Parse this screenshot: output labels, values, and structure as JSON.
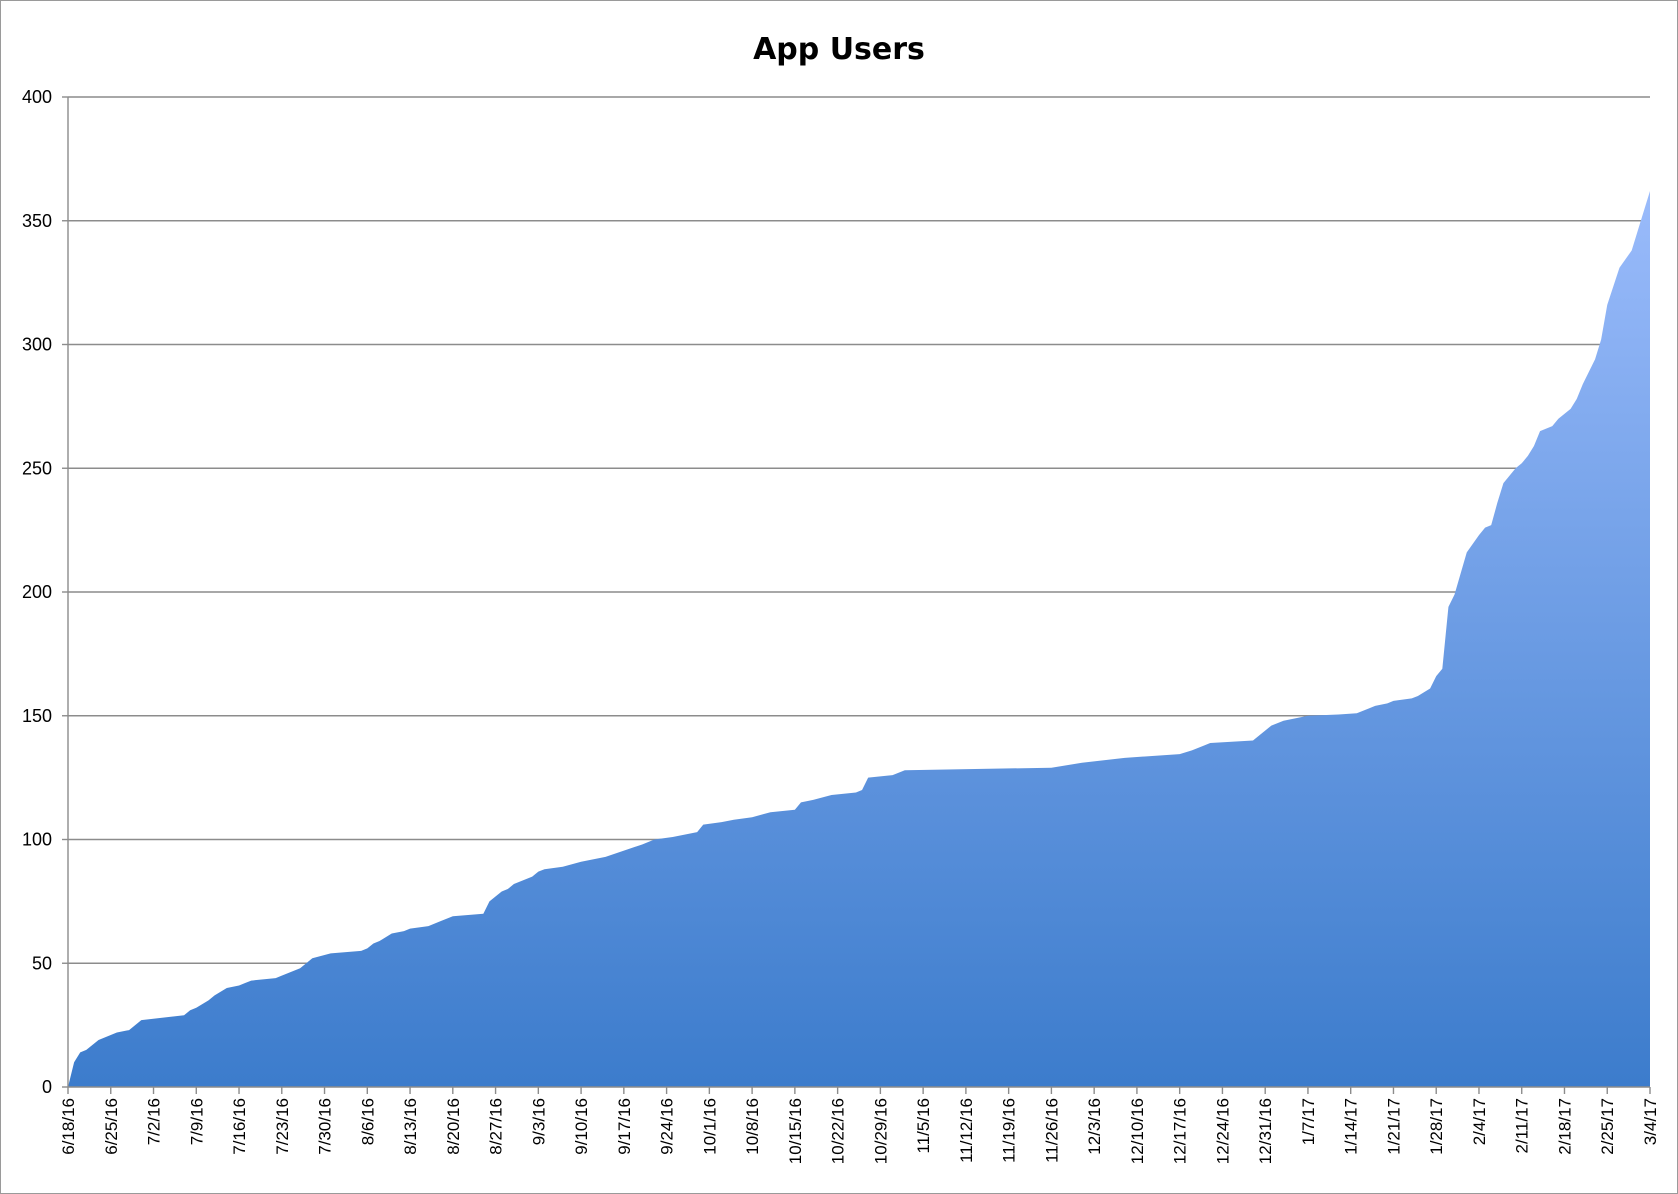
{
  "chart_data": {
    "type": "area",
    "title": "App Users",
    "xlabel": "",
    "ylabel": "",
    "grid": true,
    "legend": "none",
    "ylim": [
      0,
      400
    ],
    "y_ticks": [
      0,
      50,
      100,
      150,
      200,
      250,
      300,
      350,
      400
    ],
    "x_range": [
      "2016-06-18",
      "2017-03-04"
    ],
    "x_tick_labels": [
      "6/18/16",
      "6/25/16",
      "7/2/16",
      "7/9/16",
      "7/16/16",
      "7/23/16",
      "7/30/16",
      "8/6/16",
      "8/13/16",
      "8/20/16",
      "8/27/16",
      "9/3/16",
      "9/10/16",
      "9/17/16",
      "9/24/16",
      "10/1/16",
      "10/8/16",
      "10/15/16",
      "10/22/16",
      "10/29/16",
      "11/5/16",
      "11/12/16",
      "11/19/16",
      "11/26/16",
      "12/3/16",
      "12/10/16",
      "12/17/16",
      "12/24/16",
      "12/31/16",
      "1/7/17",
      "1/14/17",
      "1/21/17",
      "1/28/17",
      "2/4/17",
      "2/11/17",
      "2/18/17",
      "2/25/17",
      "3/4/17"
    ],
    "fill_colors": {
      "top": "#9abbfb",
      "bottom": "#3c7ccc"
    },
    "series": [
      {
        "values": [
          [
            "2016-06-18",
            0
          ],
          [
            "2016-06-19",
            10
          ],
          [
            "2016-06-20",
            14
          ],
          [
            "2016-06-21",
            15
          ],
          [
            "2016-06-23",
            19
          ],
          [
            "2016-06-25",
            21
          ],
          [
            "2016-06-26",
            22
          ],
          [
            "2016-06-28",
            23
          ],
          [
            "2016-06-30",
            27
          ],
          [
            "2016-07-07",
            29
          ],
          [
            "2016-07-08",
            31
          ],
          [
            "2016-07-09",
            32
          ],
          [
            "2016-07-11",
            35
          ],
          [
            "2016-07-12",
            37
          ],
          [
            "2016-07-14",
            40
          ],
          [
            "2016-07-16",
            41
          ],
          [
            "2016-07-17",
            42
          ],
          [
            "2016-07-18",
            43
          ],
          [
            "2016-07-22",
            44
          ],
          [
            "2016-07-23",
            45
          ],
          [
            "2016-07-26",
            48
          ],
          [
            "2016-07-27",
            50
          ],
          [
            "2016-07-28",
            52
          ],
          [
            "2016-07-31",
            54
          ],
          [
            "2016-08-05",
            55
          ],
          [
            "2016-08-06",
            56
          ],
          [
            "2016-08-07",
            58
          ],
          [
            "2016-08-08",
            59
          ],
          [
            "2016-08-10",
            62
          ],
          [
            "2016-08-12",
            63
          ],
          [
            "2016-08-13",
            64
          ],
          [
            "2016-08-16",
            65
          ],
          [
            "2016-08-18",
            67
          ],
          [
            "2016-08-20",
            69
          ],
          [
            "2016-08-25",
            70
          ],
          [
            "2016-08-26",
            75
          ],
          [
            "2016-08-28",
            79
          ],
          [
            "2016-08-29",
            80
          ],
          [
            "2016-08-30",
            82
          ],
          [
            "2016-09-02",
            85
          ],
          [
            "2016-09-03",
            87
          ],
          [
            "2016-09-04",
            88
          ],
          [
            "2016-09-07",
            89
          ],
          [
            "2016-09-10",
            91
          ],
          [
            "2016-09-14",
            93
          ],
          [
            "2016-09-20",
            98
          ],
          [
            "2016-09-22",
            100
          ],
          [
            "2016-09-25",
            101
          ],
          [
            "2016-09-29",
            103
          ],
          [
            "2016-09-30",
            106
          ],
          [
            "2016-10-03",
            107
          ],
          [
            "2016-10-05",
            108
          ],
          [
            "2016-10-08",
            109
          ],
          [
            "2016-10-11",
            111
          ],
          [
            "2016-10-13",
            111.5
          ],
          [
            "2016-10-15",
            112
          ],
          [
            "2016-10-16",
            115
          ],
          [
            "2016-10-18",
            116
          ],
          [
            "2016-10-21",
            118
          ],
          [
            "2016-10-25",
            119
          ],
          [
            "2016-10-26",
            120
          ],
          [
            "2016-10-27",
            125
          ],
          [
            "2016-10-31",
            126
          ],
          [
            "2016-11-02",
            128
          ],
          [
            "2016-11-26",
            129
          ],
          [
            "2016-12-01",
            131
          ],
          [
            "2016-12-08",
            133
          ],
          [
            "2016-12-17",
            134.5
          ],
          [
            "2016-12-19",
            136
          ],
          [
            "2016-12-21",
            138
          ],
          [
            "2016-12-22",
            139
          ],
          [
            "2016-12-29",
            140
          ],
          [
            "2017-01-01",
            146
          ],
          [
            "2017-01-03",
            148
          ],
          [
            "2017-01-05",
            149
          ],
          [
            "2017-01-07",
            150
          ],
          [
            "2017-01-12",
            150.5
          ],
          [
            "2017-01-15",
            151
          ],
          [
            "2017-01-17",
            153
          ],
          [
            "2017-01-18",
            154
          ],
          [
            "2017-01-20",
            155
          ],
          [
            "2017-01-21",
            156
          ],
          [
            "2017-01-24",
            157
          ],
          [
            "2017-01-25",
            158
          ],
          [
            "2017-01-27",
            161
          ],
          [
            "2017-01-28",
            166
          ],
          [
            "2017-01-29",
            169
          ],
          [
            "2017-01-30",
            194
          ],
          [
            "2017-01-31",
            199
          ],
          [
            "2017-02-02",
            216
          ],
          [
            "2017-02-04",
            223
          ],
          [
            "2017-02-05",
            226
          ],
          [
            "2017-02-06",
            227
          ],
          [
            "2017-02-07",
            236
          ],
          [
            "2017-02-08",
            244
          ],
          [
            "2017-02-10",
            250
          ],
          [
            "2017-02-11",
            252
          ],
          [
            "2017-02-12",
            255
          ],
          [
            "2017-02-13",
            259
          ],
          [
            "2017-02-14",
            265
          ],
          [
            "2017-02-16",
            267
          ],
          [
            "2017-02-17",
            270
          ],
          [
            "2017-02-19",
            274
          ],
          [
            "2017-02-20",
            278
          ],
          [
            "2017-02-21",
            284
          ],
          [
            "2017-02-23",
            294
          ],
          [
            "2017-02-24",
            302
          ],
          [
            "2017-02-25",
            316
          ],
          [
            "2017-02-27",
            331
          ],
          [
            "2017-03-01",
            338
          ],
          [
            "2017-03-02",
            346
          ],
          [
            "2017-03-04",
            362
          ]
        ]
      }
    ]
  }
}
